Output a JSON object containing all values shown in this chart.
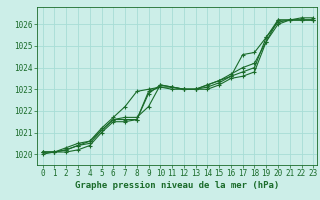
{
  "title": "Graphe pression niveau de la mer (hPa)",
  "background_color": "#cceee8",
  "grid_color": "#a8ddd6",
  "line_color": "#1a6b2a",
  "x_min": -0.5,
  "x_max": 23.3,
  "y_min": 1019.5,
  "y_max": 1026.8,
  "series": [
    [
      1020.1,
      1020.1,
      1020.1,
      1020.2,
      1020.4,
      1021.0,
      1021.5,
      1021.5,
      1021.6,
      1022.8,
      1023.2,
      1023.1,
      1023.0,
      1023.0,
      1023.0,
      1023.2,
      1023.5,
      1023.6,
      1023.8,
      1025.2,
      1026.2,
      1026.2,
      1026.3,
      1026.3
    ],
    [
      1020.1,
      1020.1,
      1020.2,
      1020.4,
      1020.5,
      1021.1,
      1021.6,
      1021.6,
      1021.6,
      1022.9,
      1023.1,
      1023.1,
      1023.0,
      1023.0,
      1023.2,
      1023.4,
      1023.6,
      1023.8,
      1024.0,
      1025.4,
      1026.2,
      1026.2,
      1026.2,
      1026.2
    ],
    [
      1020.0,
      1020.1,
      1020.2,
      1020.4,
      1020.6,
      1021.1,
      1021.6,
      1021.7,
      1021.7,
      1022.2,
      1023.2,
      1023.1,
      1023.0,
      1023.0,
      1023.1,
      1023.3,
      1023.6,
      1024.6,
      1024.7,
      1025.4,
      1026.1,
      1026.2,
      1026.2,
      1026.2
    ],
    [
      1020.1,
      1020.1,
      1020.3,
      1020.5,
      1020.6,
      1021.2,
      1021.7,
      1022.2,
      1022.9,
      1023.0,
      1023.1,
      1023.0,
      1023.0,
      1023.0,
      1023.2,
      1023.4,
      1023.7,
      1024.0,
      1024.2,
      1025.2,
      1026.0,
      1026.2,
      1026.2,
      1026.2
    ]
  ],
  "yticks": [
    1020,
    1021,
    1022,
    1023,
    1024,
    1025,
    1026
  ],
  "xticks": [
    0,
    1,
    2,
    3,
    4,
    5,
    6,
    7,
    8,
    9,
    10,
    11,
    12,
    13,
    14,
    15,
    16,
    17,
    18,
    19,
    20,
    21,
    22,
    23
  ],
  "marker": "+",
  "markersize": 3,
  "linewidth": 0.8,
  "tick_fontsize": 5.5,
  "xlabel_fontsize": 6.5
}
